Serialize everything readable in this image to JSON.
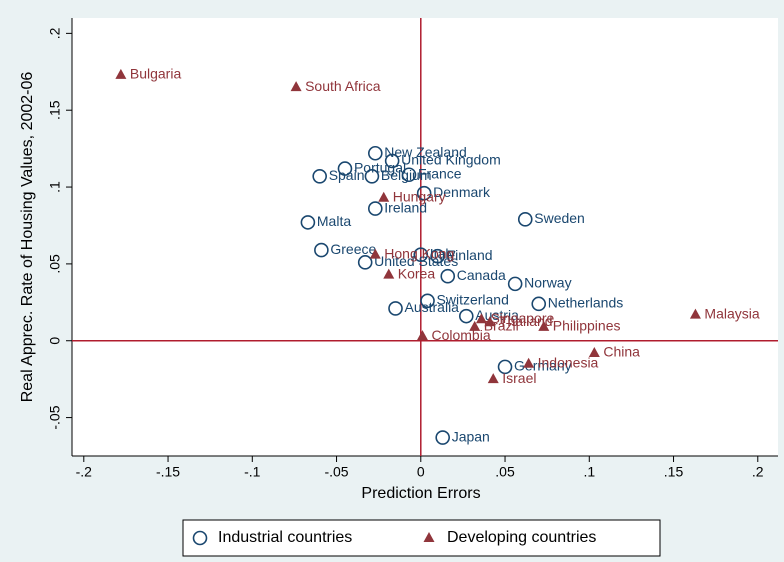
{
  "chart_data": {
    "type": "scatter",
    "xlabel": "Prediction Errors",
    "ylabel": "Real Apprec. Rate of Housing Values, 2002-06",
    "xlim": [
      -0.207,
      0.212
    ],
    "ylim": [
      -0.075,
      0.21
    ],
    "xticks": [
      {
        "value": -0.2,
        "label": "-.2"
      },
      {
        "value": -0.15,
        "label": "-.15"
      },
      {
        "value": -0.1,
        "label": "-.1"
      },
      {
        "value": -0.05,
        "label": "-.05"
      },
      0,
      {
        "value": 0.05,
        "label": ".05"
      },
      {
        "value": 0.1,
        "label": ".1"
      },
      {
        "value": 0.15,
        "label": ".15"
      },
      {
        "value": 0.2,
        "label": ".2"
      }
    ],
    "yticks": [
      {
        "value": -0.05,
        "label": "-.05"
      },
      0,
      {
        "value": 0.05,
        "label": ".05"
      },
      {
        "value": 0.1,
        "label": ".1"
      },
      {
        "value": 0.15,
        "label": ".15"
      },
      {
        "value": 0.2,
        "label": ".2"
      }
    ],
    "reference_lines": {
      "x": 0,
      "y": 0,
      "color": "#b01c2e"
    },
    "series": [
      {
        "name": "Industrial countries",
        "color": "#1a476f",
        "marker": "circle",
        "labels": [
          "New Zealand",
          "United Kingdom",
          "Portugal",
          "Spain",
          "Belgium",
          "France",
          "Denmark",
          "Ireland",
          "Malta",
          "Sweden",
          "Greece",
          "Italy",
          "Finland",
          "United States",
          "Canada",
          "Norway",
          "Switzerland",
          "Netherlands",
          "Australia",
          "Austria",
          "Germany",
          "Japan"
        ],
        "x": [
          -0.027,
          -0.017,
          -0.045,
          -0.06,
          -0.029,
          -0.007,
          0.002,
          -0.027,
          -0.067,
          0.062,
          -0.059,
          0.0,
          0.01,
          -0.033,
          0.016,
          0.056,
          0.004,
          0.07,
          -0.015,
          0.027,
          0.05,
          0.013
        ],
        "values": [
          0.122,
          0.117,
          0.112,
          0.107,
          0.107,
          0.108,
          0.096,
          0.086,
          0.077,
          0.079,
          0.059,
          0.056,
          0.055,
          0.051,
          0.042,
          0.037,
          0.026,
          0.024,
          0.021,
          0.016,
          -0.017,
          -0.063
        ]
      },
      {
        "name": "Developing countries",
        "color": "#90353b",
        "marker": "triangle",
        "labels": [
          "Bulgaria",
          "South Africa",
          "Hungary",
          "Hong Kong",
          "Korea",
          "Colombia",
          "Brazil",
          "Singapore",
          "Thailand",
          "Philippines",
          "Malaysia",
          "China",
          "Indonesia",
          "Israel"
        ],
        "x": [
          -0.178,
          -0.074,
          -0.022,
          -0.027,
          -0.019,
          0.001,
          0.032,
          0.036,
          0.041,
          0.073,
          0.163,
          0.103,
          0.064,
          0.043
        ],
        "values": [
          0.173,
          0.165,
          0.093,
          0.056,
          0.043,
          0.003,
          0.009,
          0.014,
          0.012,
          0.009,
          0.017,
          -0.008,
          -0.015,
          -0.025
        ]
      }
    ]
  }
}
